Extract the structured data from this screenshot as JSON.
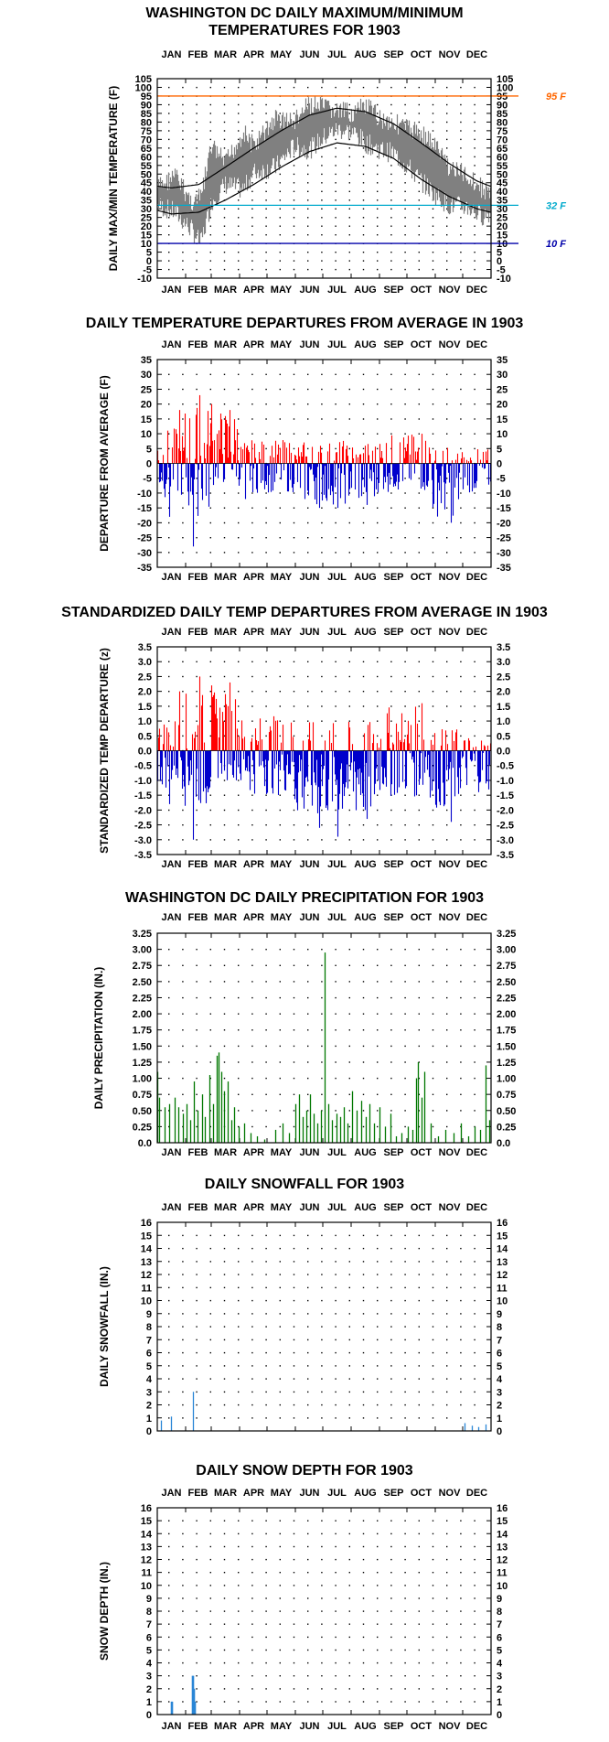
{
  "months": [
    "JAN",
    "FEB",
    "MAR",
    "APR",
    "MAY",
    "JUN",
    "JUL",
    "AUG",
    "SEP",
    "OCT",
    "NOV",
    "DEC"
  ],
  "colors": {
    "max_line": "#000000",
    "observed": "#808080",
    "warm": "#ff0000",
    "cold": "#0000cc",
    "line95": "#ff6600",
    "line32": "#00aacc",
    "line10": "#0000aa",
    "precip": "#007700",
    "snow": "#2a86d6"
  },
  "chart_data": [
    {
      "id": "temp",
      "type": "line",
      "title": [
        "WASHINGTON DC DAILY MAXIMUM/MINIMUM",
        "TEMPERATURES FOR 1903"
      ],
      "ylabel": "DAILY MAX/MIN TEMPERATURE (F)",
      "ylim": [
        -10,
        105
      ],
      "ticks": [
        "-10",
        "-5",
        "0",
        "5",
        "10",
        "15",
        "20",
        "25",
        "30",
        "35",
        "40",
        "45",
        "50",
        "55",
        "60",
        "65",
        "70",
        "75",
        "80",
        "85",
        "90",
        "95",
        "100",
        "105"
      ],
      "month_ticks": [
        16,
        45,
        75,
        106,
        136,
        167,
        197,
        228,
        259,
        289,
        320,
        350
      ],
      "reference_lines": [
        {
          "value": 95,
          "label": "95 F",
          "color": "#ff6600"
        },
        {
          "value": 32,
          "label": "32 F",
          "color": "#00aacc"
        },
        {
          "value": 10,
          "label": "10 F",
          "color": "#0000aa"
        }
      ],
      "normal_high_curve": {
        "days": [
          1,
          16,
          46,
          75,
          106,
          136,
          167,
          197,
          228,
          259,
          289,
          320,
          350,
          365
        ],
        "values": [
          43,
          42,
          44,
          54,
          65,
          75,
          84,
          88,
          86,
          79,
          68,
          56,
          46,
          43
        ]
      },
      "normal_low_curve": {
        "days": [
          1,
          16,
          46,
          75,
          106,
          136,
          167,
          197,
          228,
          259,
          289,
          320,
          350,
          365
        ],
        "values": [
          29,
          27,
          28,
          35,
          44,
          54,
          63,
          68,
          66,
          59,
          47,
          37,
          30,
          28
        ]
      },
      "observed_band": {
        "days": [
          1,
          20,
          38,
          48,
          60,
          75,
          95,
          106,
          130,
          150,
          167,
          185,
          197,
          215,
          228,
          245,
          259,
          275,
          289,
          305,
          320,
          340,
          355,
          365
        ],
        "high": [
          48,
          55,
          40,
          42,
          72,
          62,
          80,
          72,
          88,
          86,
          96,
          94,
          92,
          91,
          95,
          88,
          86,
          82,
          80,
          72,
          60,
          55,
          48,
          45
        ],
        "low": [
          26,
          22,
          12,
          4,
          28,
          38,
          35,
          45,
          48,
          60,
          58,
          66,
          70,
          68,
          62,
          58,
          56,
          48,
          40,
          32,
          26,
          25,
          20,
          22
        ]
      }
    },
    {
      "id": "dep",
      "type": "bar",
      "title": [
        "DAILY TEMPERATURE DEPARTURES FROM AVERAGE IN 1903"
      ],
      "ylabel": "DEPARTURE FROM AVERAGE (F)",
      "ylim": [
        -35,
        35
      ],
      "ticks": [
        "-35",
        "-30",
        "-25",
        "-20",
        "-15",
        "-10",
        "-5",
        "0",
        "5",
        "10",
        "15",
        "20",
        "25",
        "30",
        "35"
      ],
      "month_ticks": [
        16,
        45,
        75,
        106,
        136,
        167,
        197,
        228,
        259,
        289,
        320,
        350
      ],
      "extremes": [
        {
          "day": 14,
          "value": -18
        },
        {
          "day": 25,
          "value": 18
        },
        {
          "day": 40,
          "value": -28
        },
        {
          "day": 47,
          "value": 23
        },
        {
          "day": 60,
          "value": 20
        },
        {
          "day": 80,
          "value": 18
        },
        {
          "day": 97,
          "value": -12
        },
        {
          "day": 178,
          "value": -15
        },
        {
          "day": 198,
          "value": -15
        },
        {
          "day": 230,
          "value": -14
        },
        {
          "day": 290,
          "value": 10
        },
        {
          "day": 322,
          "value": -20
        }
      ],
      "segments": [
        {
          "from": 1,
          "to": 30,
          "range": [
            -12,
            12
          ]
        },
        {
          "from": 31,
          "to": 60,
          "range": [
            -18,
            20
          ]
        },
        {
          "from": 61,
          "to": 90,
          "range": [
            -8,
            18
          ]
        },
        {
          "from": 91,
          "to": 150,
          "range": [
            -10,
            8
          ]
        },
        {
          "from": 151,
          "to": 240,
          "range": [
            -14,
            8
          ]
        },
        {
          "from": 241,
          "to": 300,
          "range": [
            -10,
            10
          ]
        },
        {
          "from": 301,
          "to": 330,
          "range": [
            -18,
            6
          ]
        },
        {
          "from": 331,
          "to": 365,
          "range": [
            -10,
            5
          ]
        }
      ]
    },
    {
      "id": "std",
      "type": "bar",
      "title": [
        "STANDARDIZED DAILY TEMP DEPARTURES FROM AVERAGE IN 1903"
      ],
      "ylabel": "STANDARDIZED TEMP DEPARTURE (z)",
      "ylim": [
        -3.5,
        3.5
      ],
      "ticks": [
        "-3.5",
        "-3.0",
        "-2.5",
        "-2.0",
        "-1.5",
        "-1.0",
        "-0.5",
        "0.0",
        "0.5",
        "1.0",
        "1.5",
        "2.0",
        "2.5",
        "3.0",
        "3.5"
      ],
      "month_ticks": [
        16,
        45,
        75,
        106,
        136,
        167,
        197,
        228,
        259,
        289,
        320,
        350
      ],
      "extremes": [
        {
          "day": 14,
          "value": -1.8
        },
        {
          "day": 25,
          "value": 2.0
        },
        {
          "day": 40,
          "value": -3.0
        },
        {
          "day": 47,
          "value": 2.5
        },
        {
          "day": 60,
          "value": 2.2
        },
        {
          "day": 80,
          "value": 2.3
        },
        {
          "day": 178,
          "value": -2.6
        },
        {
          "day": 198,
          "value": -2.9
        },
        {
          "day": 230,
          "value": -2.3
        },
        {
          "day": 290,
          "value": 1.6
        },
        {
          "day": 322,
          "value": -2.4
        }
      ],
      "segments": [
        {
          "from": 1,
          "to": 30,
          "range": [
            -1.3,
            1.2
          ]
        },
        {
          "from": 31,
          "to": 60,
          "range": [
            -2.0,
            2.0
          ]
        },
        {
          "from": 61,
          "to": 90,
          "range": [
            -1.0,
            2.0
          ]
        },
        {
          "from": 91,
          "to": 150,
          "range": [
            -1.5,
            1.2
          ]
        },
        {
          "from": 151,
          "to": 240,
          "range": [
            -2.4,
            1.0
          ]
        },
        {
          "from": 241,
          "to": 300,
          "range": [
            -1.6,
            1.5
          ]
        },
        {
          "from": 301,
          "to": 330,
          "range": [
            -2.0,
            0.8
          ]
        },
        {
          "from": 331,
          "to": 365,
          "range": [
            -1.4,
            0.6
          ]
        }
      ]
    },
    {
      "id": "precip",
      "type": "bar",
      "title": [
        "WASHINGTON DC DAILY PRECIPITATION FOR 1903"
      ],
      "ylabel": "DAILY PRECIPITATION (IN.)",
      "ylim": [
        0,
        3.25
      ],
      "ticks": [
        "0.0",
        "0.25",
        "0.50",
        "0.75",
        "1.00",
        "1.25",
        "1.50",
        "1.75",
        "2.00",
        "2.25",
        "2.50",
        "2.75",
        "3.00",
        "3.25"
      ],
      "month_ticks": [
        16,
        45,
        75,
        106,
        136,
        167,
        197,
        228,
        259,
        289,
        320,
        350
      ],
      "values": [
        {
          "day": 1,
          "value": 1.1
        },
        {
          "day": 3,
          "value": 0.7
        },
        {
          "day": 9,
          "value": 0.55
        },
        {
          "day": 14,
          "value": 0.6
        },
        {
          "day": 20,
          "value": 0.7
        },
        {
          "day": 24,
          "value": 0.55
        },
        {
          "day": 29,
          "value": 0.45
        },
        {
          "day": 33,
          "value": 0.6
        },
        {
          "day": 37,
          "value": 0.35
        },
        {
          "day": 41,
          "value": 0.95
        },
        {
          "day": 45,
          "value": 0.5
        },
        {
          "day": 50,
          "value": 0.75
        },
        {
          "day": 53,
          "value": 0.4
        },
        {
          "day": 58,
          "value": 1.05
        },
        {
          "day": 62,
          "value": 0.6
        },
        {
          "day": 66,
          "value": 1.35
        },
        {
          "day": 68,
          "value": 1.4
        },
        {
          "day": 71,
          "value": 1.1
        },
        {
          "day": 74,
          "value": 0.8
        },
        {
          "day": 78,
          "value": 0.95
        },
        {
          "day": 82,
          "value": 0.35
        },
        {
          "day": 85,
          "value": 0.55
        },
        {
          "day": 90,
          "value": 0.25
        },
        {
          "day": 96,
          "value": 0.3
        },
        {
          "day": 103,
          "value": 0.15
        },
        {
          "day": 110,
          "value": 0.1
        },
        {
          "day": 118,
          "value": 0.05
        },
        {
          "day": 130,
          "value": 0.2
        },
        {
          "day": 138,
          "value": 0.3
        },
        {
          "day": 145,
          "value": 0.15
        },
        {
          "day": 152,
          "value": 0.6
        },
        {
          "day": 156,
          "value": 0.75
        },
        {
          "day": 160,
          "value": 0.4
        },
        {
          "day": 164,
          "value": 0.5
        },
        {
          "day": 168,
          "value": 0.75
        },
        {
          "day": 172,
          "value": 0.45
        },
        {
          "day": 176,
          "value": 0.3
        },
        {
          "day": 180,
          "value": 0.5
        },
        {
          "day": 184,
          "value": 2.95
        },
        {
          "day": 188,
          "value": 0.6
        },
        {
          "day": 192,
          "value": 0.35
        },
        {
          "day": 197,
          "value": 0.45
        },
        {
          "day": 201,
          "value": 0.4
        },
        {
          "day": 205,
          "value": 0.55
        },
        {
          "day": 209,
          "value": 0.3
        },
        {
          "day": 214,
          "value": 0.8
        },
        {
          "day": 219,
          "value": 0.5
        },
        {
          "day": 224,
          "value": 0.65
        },
        {
          "day": 229,
          "value": 0.4
        },
        {
          "day": 233,
          "value": 0.6
        },
        {
          "day": 238,
          "value": 0.3
        },
        {
          "day": 244,
          "value": 0.55
        },
        {
          "day": 250,
          "value": 0.25
        },
        {
          "day": 256,
          "value": 0.45
        },
        {
          "day": 262,
          "value": 0.1
        },
        {
          "day": 268,
          "value": 0.15
        },
        {
          "day": 275,
          "value": 0.25
        },
        {
          "day": 280,
          "value": 0.2
        },
        {
          "day": 284,
          "value": 1.0
        },
        {
          "day": 286,
          "value": 1.25
        },
        {
          "day": 290,
          "value": 0.7
        },
        {
          "day": 293,
          "value": 1.1
        },
        {
          "day": 300,
          "value": 0.3
        },
        {
          "day": 308,
          "value": 0.1
        },
        {
          "day": 316,
          "value": 0.2
        },
        {
          "day": 325,
          "value": 0.15
        },
        {
          "day": 333,
          "value": 0.3
        },
        {
          "day": 341,
          "value": 0.1
        },
        {
          "day": 348,
          "value": 0.25
        },
        {
          "day": 354,
          "value": 0.2
        },
        {
          "day": 360,
          "value": 1.2
        },
        {
          "day": 364,
          "value": 0.35
        }
      ]
    },
    {
      "id": "snowfall",
      "type": "bar",
      "title": [
        "DAILY SNOWFALL FOR 1903"
      ],
      "ylabel": "DAILY SNOWFALL (IN.)",
      "ylim": [
        0,
        16
      ],
      "ticks": [
        "0",
        "1",
        "2",
        "3",
        "4",
        "5",
        "6",
        "7",
        "8",
        "9",
        "10",
        "11",
        "12",
        "13",
        "14",
        "15",
        "16"
      ],
      "month_ticks": [
        16,
        45,
        75,
        106,
        136,
        167,
        197,
        228,
        259,
        289,
        320,
        350
      ],
      "values": [
        {
          "day": 5,
          "value": 0.8
        },
        {
          "day": 16,
          "value": 1.1
        },
        {
          "day": 40,
          "value": 3.0
        },
        {
          "day": 337,
          "value": 0.6
        },
        {
          "day": 345,
          "value": 0.4
        },
        {
          "day": 352,
          "value": 0.3
        },
        {
          "day": 360,
          "value": 0.5
        }
      ]
    },
    {
      "id": "snowdepth",
      "type": "bar",
      "title": [
        "DAILY SNOW DEPTH FOR 1903"
      ],
      "ylabel": "SNOW DEPTH (IN.)",
      "ylim": [
        0,
        16
      ],
      "ticks": [
        "0",
        "1",
        "2",
        "3",
        "4",
        "5",
        "6",
        "7",
        "8",
        "9",
        "10",
        "11",
        "12",
        "13",
        "14",
        "15",
        "16"
      ],
      "month_ticks": [
        16,
        45,
        75,
        106,
        136,
        167,
        197,
        228,
        259,
        289,
        320,
        350
      ],
      "values": [
        {
          "day": 16,
          "value": 1.0
        },
        {
          "day": 17,
          "value": 1.0
        },
        {
          "day": 39,
          "value": 3.0
        },
        {
          "day": 40,
          "value": 3.0
        },
        {
          "day": 41,
          "value": 2.0
        },
        {
          "day": 42,
          "value": 1.0
        }
      ]
    }
  ]
}
